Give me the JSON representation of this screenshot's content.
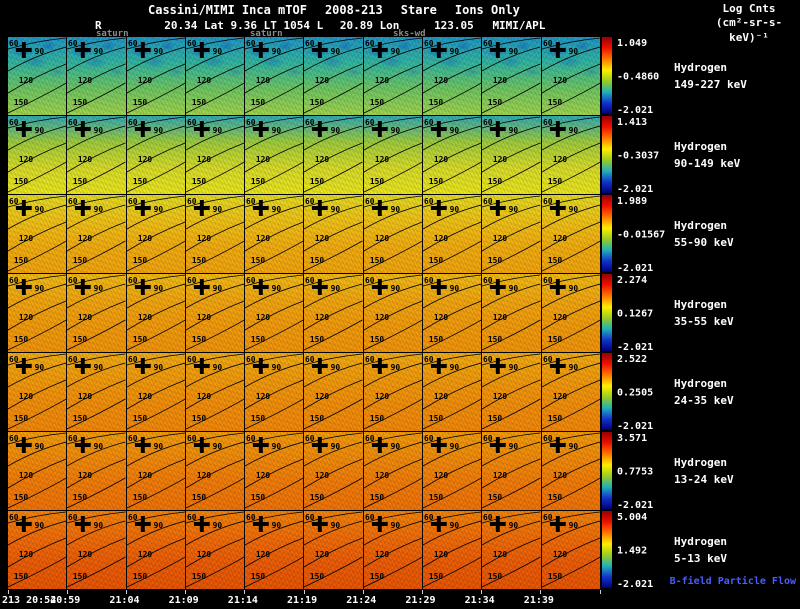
{
  "header": {
    "title_segments": [
      "Cassini/MIMI Inca mTOF",
      "2008-213",
      "Stare",
      "Ions Only"
    ],
    "units_line1": "Log Cnts",
    "units_line2": "(cm²-sr-s-keV)⁻¹",
    "ephemeris": [
      "R",
      "20.34 Lat 9.36 LT 1054 L",
      "20.89 Lon",
      "123.05",
      "MIMI/APL"
    ],
    "overlay_labels": [
      "saturn",
      "saturn",
      "sks-wd"
    ]
  },
  "chart_data": {
    "type": "heatmap",
    "title": "Cassini/MIMI Inca mTOF 2008-213 Stare Ions Only",
    "colorbar_units": "Log Cnts (cm²-sr-s-keV)⁻¹",
    "panels_per_row": 10,
    "contour_labels": [
      "60",
      "90",
      "120",
      "150"
    ],
    "time_labels": [
      "213 20:54",
      "20:59",
      "21:04",
      "21:09",
      "21:14",
      "21:19",
      "21:24",
      "21:29",
      "21:34",
      "21:39"
    ],
    "colorbar_stops": [
      "#990000",
      "#ee1100",
      "#ff7700",
      "#ffee00",
      "#99cc22",
      "#22b0b8",
      "#1133cc",
      "#000077"
    ],
    "rows": [
      {
        "species": "Hydrogen",
        "band": "149-227 keV",
        "cbar": {
          "max": "1.049",
          "mid": "-0.4860",
          "min": "-2.021"
        },
        "gradient": [
          "#1b94c4",
          "#2fb49e",
          "#6cc45f",
          "#9ed24a"
        ],
        "mottle_color": "#0e55b8"
      },
      {
        "species": "Hydrogen",
        "band": "90-149 keV",
        "cbar": {
          "max": "1.413",
          "mid": "-0.3037",
          "min": "-2.021"
        },
        "gradient": [
          "#2fa8b4",
          "#9cca39",
          "#d6da26",
          "#e9e41a"
        ]
      },
      {
        "species": "Hydrogen",
        "band": "55-90 keV",
        "cbar": {
          "max": "1.989",
          "mid": "-0.01567",
          "min": "-2.021"
        },
        "gradient": [
          "#e2da20",
          "#eec013",
          "#f0aa0c",
          "#f0a309"
        ]
      },
      {
        "species": "Hydrogen",
        "band": "35-55 keV",
        "cbar": {
          "max": "2.274",
          "mid": "0.1267",
          "min": "-2.021"
        },
        "gradient": [
          "#efba11",
          "#f0a40c",
          "#f09808",
          "#f09207"
        ]
      },
      {
        "species": "Hydrogen",
        "band": "24-35 keV",
        "cbar": {
          "max": "2.522",
          "mid": "0.2505",
          "min": "-2.021"
        },
        "gradient": [
          "#f0aa0e",
          "#f09808",
          "#f08b06",
          "#f08605"
        ]
      },
      {
        "species": "Hydrogen",
        "band": "13-24 keV",
        "cbar": {
          "max": "3.571",
          "mid": "0.7753",
          "min": "-2.021"
        },
        "gradient": [
          "#f09a08",
          "#f08806",
          "#f07804",
          "#ee7003"
        ]
      },
      {
        "species": "Hydrogen",
        "band": "5-13 keV",
        "cbar": {
          "max": "5.004",
          "mid": "1.492",
          "min": "-2.021"
        },
        "gradient": [
          "#f08006",
          "#ef6a04",
          "#ea5902",
          "#e65200"
        ],
        "footnote": "B-field Particle Flow",
        "footnote_color": "#4b5cff"
      }
    ]
  }
}
